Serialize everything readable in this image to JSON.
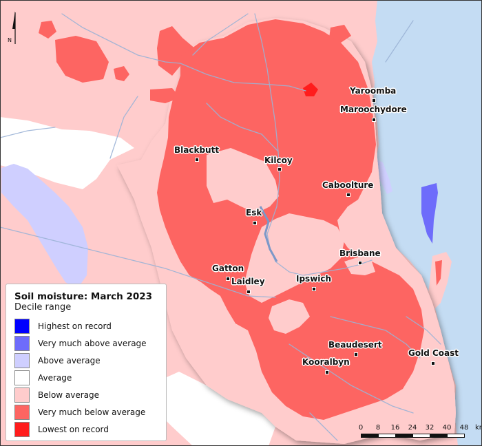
{
  "map": {
    "legend_title": "Soil moisture: March 2023",
    "legend_subtitle": "Decile range",
    "north_letter": "N",
    "scale_unit": "km",
    "scale_ticks": [
      "0",
      "8",
      "16",
      "24",
      "32",
      "40",
      "48"
    ],
    "colors": {
      "ocean": "#c4dcf3",
      "highest_on_record": "#0000ff",
      "very_much_above_average": "#6e6cfb",
      "above_average": "#cfcfff",
      "average": "#ffffff",
      "below_average": "#ffcccc",
      "very_much_below_average": "#fd6562",
      "lowest_on_record": "#ff1c1c",
      "rivers": "#9bb3d6"
    },
    "legend_items": [
      {
        "label": "Highest on record",
        "color": "#0000ff"
      },
      {
        "label": "Very much above average",
        "color": "#6e6cfb"
      },
      {
        "label": "Above average",
        "color": "#cfcfff"
      },
      {
        "label": "Average",
        "color": "#ffffff"
      },
      {
        "label": "Below average",
        "color": "#ffcccc"
      },
      {
        "label": "Very much below average",
        "color": "#fd6562"
      },
      {
        "label": "Lowest on record",
        "color": "#ff1c1c"
      }
    ],
    "towns": {
      "yaroomba": "Yaroomba",
      "maroochydore": "Maroochydore",
      "blackbutt": "Blackbutt",
      "kilcoy": "Kilcoy",
      "caboolture": "Caboolture",
      "esk": "Esk",
      "brisbane": "Brisbane",
      "gatton": "Gatton",
      "laidley": "Laidley",
      "ipswich": "Ipswich",
      "beaudesert": "Beaudesert",
      "gold_coast": "Gold Coast",
      "kooralbyn": "Kooralbyn"
    }
  }
}
